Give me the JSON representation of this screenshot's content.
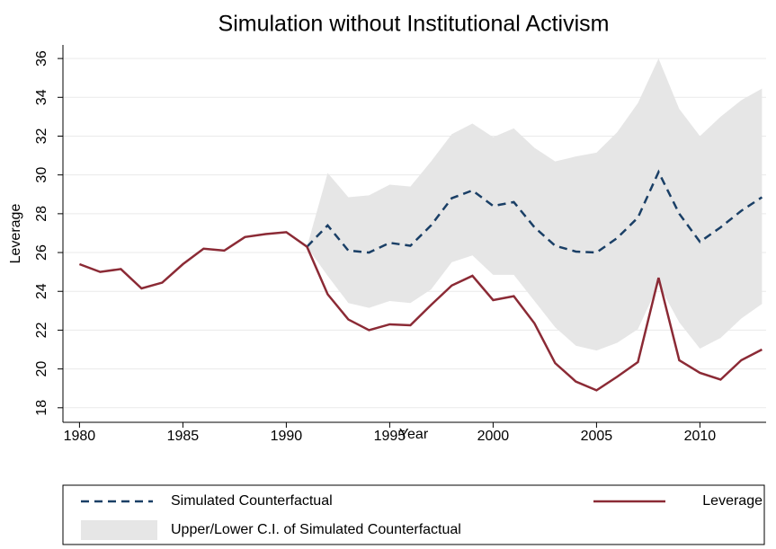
{
  "chart_data": {
    "type": "line",
    "title": "Simulation without Institutional Activism",
    "x_label": "Year",
    "y_label": "Leverage",
    "x": [
      1980,
      1981,
      1982,
      1983,
      1984,
      1985,
      1986,
      1987,
      1988,
      1989,
      1990,
      1991,
      1992,
      1993,
      1994,
      1995,
      1996,
      1997,
      1998,
      1999,
      2000,
      2001,
      2002,
      2003,
      2004,
      2005,
      2006,
      2007,
      2008,
      2009,
      2010,
      2011,
      2012,
      2013
    ],
    "xlim": [
      1979.2,
      2013.2
    ],
    "xticks": [
      1980,
      1985,
      1990,
      1995,
      2000,
      2005,
      2010
    ],
    "ylim": [
      17.25,
      36.7
    ],
    "yticks": [
      18,
      20,
      22,
      24,
      26,
      28,
      30,
      32,
      34,
      36
    ],
    "grid": true,
    "series": [
      {
        "name": "Simulated Counterfactual",
        "color": "#1a3f66",
        "style": "dashed",
        "values": [
          null,
          null,
          null,
          null,
          null,
          null,
          null,
          null,
          null,
          null,
          null,
          26.3,
          27.4,
          26.1,
          26.0,
          26.5,
          26.35,
          27.4,
          28.8,
          29.2,
          28.4,
          28.6,
          27.3,
          26.35,
          26.05,
          26.0,
          26.75,
          27.8,
          30.15,
          28.0,
          26.55,
          27.3,
          28.15,
          28.85
        ]
      },
      {
        "name": "Leverage",
        "color": "#8b2a35",
        "style": "solid",
        "values": [
          25.4,
          25.0,
          25.15,
          24.15,
          24.45,
          25.4,
          26.2,
          26.1,
          26.8,
          26.95,
          27.05,
          26.3,
          23.85,
          22.55,
          22.0,
          22.3,
          22.25,
          23.3,
          24.3,
          24.8,
          23.55,
          23.75,
          22.35,
          20.3,
          19.35,
          18.9,
          19.6,
          20.35,
          24.7,
          20.45,
          19.8,
          19.45,
          20.45,
          21.0
        ]
      },
      {
        "name": "Upper/Lower C.I. of Simulated Counterfactual",
        "color": "#e6e6e6",
        "style": "band",
        "upper": [
          null,
          null,
          null,
          null,
          null,
          null,
          null,
          null,
          null,
          null,
          null,
          26.3,
          30.1,
          28.85,
          28.95,
          29.5,
          29.4,
          30.7,
          32.1,
          32.65,
          31.95,
          32.4,
          31.4,
          30.7,
          30.95,
          31.15,
          32.2,
          33.7,
          36.0,
          33.4,
          32.0,
          33.0,
          33.85,
          34.45
        ],
        "lower": [
          null,
          null,
          null,
          null,
          null,
          null,
          null,
          null,
          null,
          null,
          null,
          26.3,
          24.8,
          23.4,
          23.15,
          23.5,
          23.4,
          24.1,
          25.5,
          25.85,
          24.85,
          24.85,
          23.5,
          22.15,
          21.2,
          20.95,
          21.35,
          22.05,
          24.35,
          22.4,
          21.05,
          21.6,
          22.6,
          23.35
        ]
      }
    ]
  }
}
